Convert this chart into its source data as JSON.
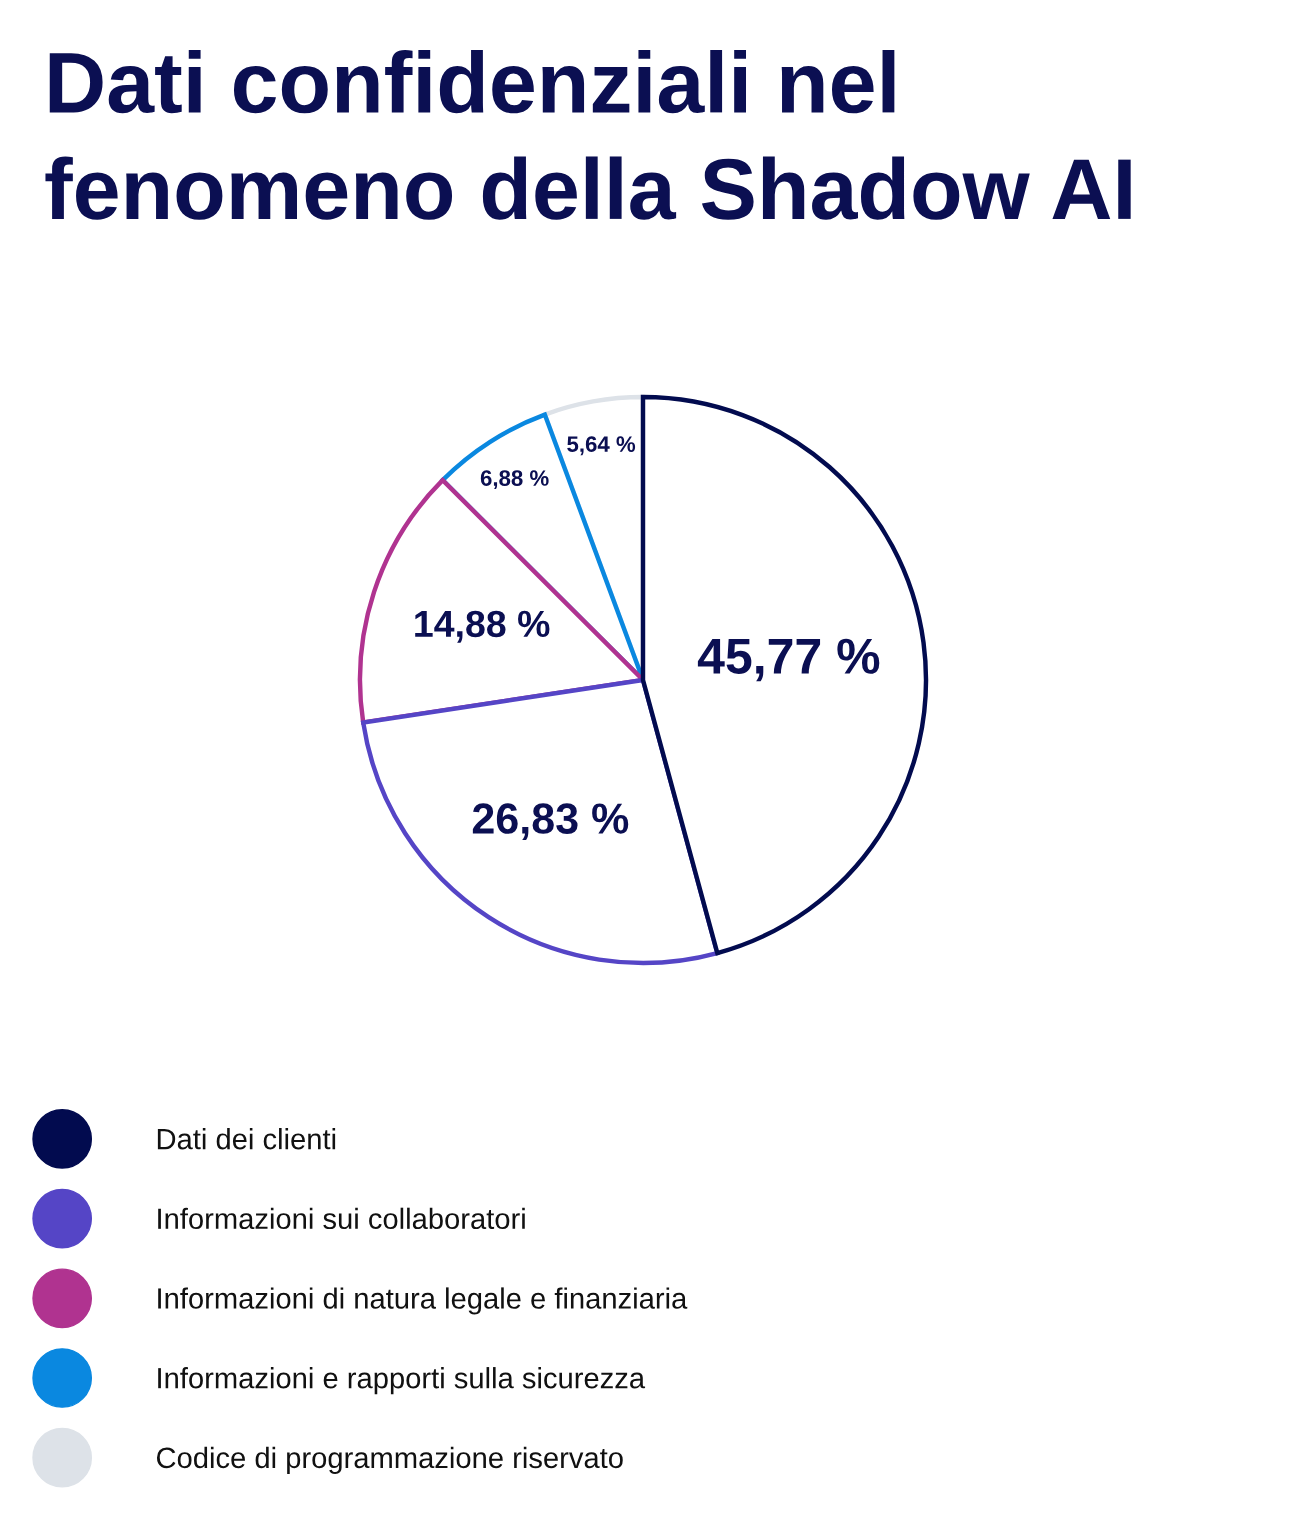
{
  "chart_data": {
    "type": "pie",
    "title": "Dati confidenziali nel\nfenomeno della Shadow AI",
    "categories": [
      "Dati dei clienti",
      "Informazioni sui collaboratori",
      "Informazioni di natura legale e finanziaria",
      "Informazioni e rapporti sulla sicurezza",
      "Codice di programmazione riservato"
    ],
    "values": [
      45.77,
      26.83,
      14.88,
      6.88,
      5.64
    ],
    "colors": [
      "#020b4f",
      "#5545c6",
      "#b03390",
      "#0a88e0",
      "#dde2e8"
    ],
    "value_labels": [
      "45,77 %",
      "26,83 %",
      "14,88 %",
      "6,88 %",
      "5,64 %"
    ],
    "legend": "bottom"
  }
}
